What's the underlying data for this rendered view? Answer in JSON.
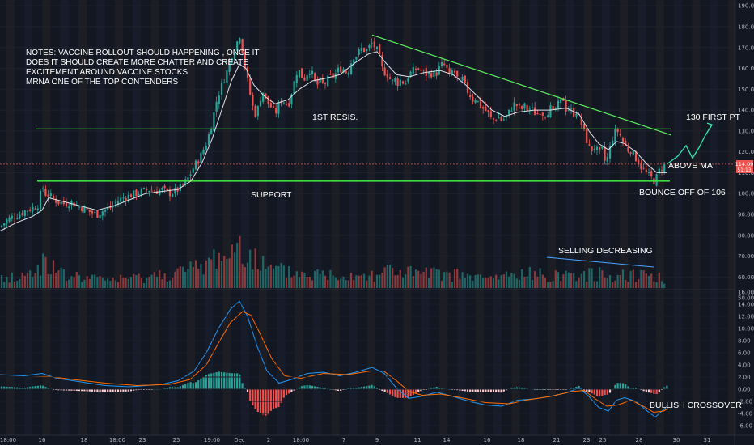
{
  "chart_data": {
    "type": "candlestick",
    "price_axis": {
      "ticks": [
        "190.00",
        "180.00",
        "170.00",
        "160.00",
        "150.00",
        "140.00",
        "130.00",
        "120.00",
        "110.00",
        "100.00",
        "90.00",
        "80.00",
        "70.00",
        "60.00",
        "50.00"
      ],
      "last_price_label": "114.09",
      "timer_label": "51:13",
      "last_price_color": "#ef5350"
    },
    "macd_axis": {
      "ticks": [
        "16.00",
        "14.00",
        "12.00",
        "10.00",
        "8.00",
        "6.00",
        "4.00",
        "2.00",
        "0.00",
        "-2.00",
        "-4.00",
        "-6.00"
      ]
    },
    "time_axis": {
      "labels": [
        "18:00",
        "16",
        "18",
        "18:00",
        "23",
        "25",
        "19:00",
        "Dec",
        "2",
        "18:00",
        "7",
        "9",
        "11",
        "14",
        "16",
        "18",
        "21",
        "23",
        "25",
        "28",
        "30",
        "31"
      ]
    },
    "annotations": {
      "notes_lines": [
        "NOTES: VACCINE ROLLOUT SHOULD HAPPENING , ONCE IT",
        "DOES IT SHOULD CREATE MORE CHATTER AND CREATE",
        "EXCITEMENT AROUND VACCINE STOCKS",
        "MRNA ONE OF THE TOP CONTENDERS"
      ],
      "first_resistance": "1ST RESIS.",
      "support": "SUPPORT",
      "target": "130 FIRST PT",
      "above_ma": "ABOVE MA",
      "bounce": "BOUNCE OFF OF 106",
      "selling": "SELLING DECREASING",
      "crossover": "BULLISH CROSSOVER"
    },
    "levels": {
      "resistance": 131,
      "support": 106
    },
    "price_path": [
      [
        0,
        84
      ],
      [
        8,
        87
      ],
      [
        16,
        89
      ],
      [
        24,
        90
      ],
      [
        32,
        92
      ],
      [
        40,
        93
      ],
      [
        48,
        95
      ],
      [
        52,
        104
      ],
      [
        56,
        100
      ],
      [
        64,
        98
      ],
      [
        72,
        96
      ],
      [
        80,
        95
      ],
      [
        88,
        96
      ],
      [
        96,
        94
      ],
      [
        104,
        93
      ],
      [
        112,
        91
      ],
      [
        120,
        90
      ],
      [
        128,
        92
      ],
      [
        136,
        93
      ],
      [
        144,
        96
      ],
      [
        152,
        98
      ],
      [
        160,
        99
      ],
      [
        168,
        100
      ],
      [
        176,
        101
      ],
      [
        184,
        102
      ],
      [
        192,
        101
      ],
      [
        200,
        102
      ],
      [
        208,
        100
      ],
      [
        216,
        101
      ],
      [
        224,
        103
      ],
      [
        232,
        107
      ],
      [
        240,
        113
      ],
      [
        248,
        118
      ],
      [
        256,
        125
      ],
      [
        262,
        134
      ],
      [
        268,
        145
      ],
      [
        274,
        152
      ],
      [
        280,
        158
      ],
      [
        286,
        166
      ],
      [
        292,
        171
      ],
      [
        296,
        177
      ],
      [
        300,
        168
      ],
      [
        304,
        158
      ],
      [
        308,
        150
      ],
      [
        312,
        142
      ],
      [
        316,
        138
      ],
      [
        320,
        142
      ],
      [
        324,
        150
      ],
      [
        328,
        146
      ],
      [
        332,
        143
      ],
      [
        336,
        141
      ],
      [
        340,
        138
      ],
      [
        344,
        142
      ],
      [
        348,
        145
      ],
      [
        352,
        144
      ],
      [
        356,
        142
      ],
      [
        360,
        148
      ],
      [
        364,
        154
      ],
      [
        368,
        160
      ],
      [
        372,
        157
      ],
      [
        376,
        155
      ],
      [
        380,
        158
      ],
      [
        384,
        160
      ],
      [
        388,
        154
      ],
      [
        392,
        152
      ],
      [
        396,
        154
      ],
      [
        400,
        152
      ],
      [
        404,
        154
      ],
      [
        408,
        156
      ],
      [
        412,
        156
      ],
      [
        416,
        158
      ],
      [
        420,
        160
      ],
      [
        424,
        160
      ],
      [
        428,
        158
      ],
      [
        432,
        160
      ],
      [
        436,
        166
      ],
      [
        440,
        166
      ],
      [
        444,
        168
      ],
      [
        448,
        170
      ],
      [
        452,
        168
      ],
      [
        456,
        170
      ],
      [
        460,
        172
      ],
      [
        464,
        170
      ],
      [
        468,
        167
      ],
      [
        472,
        160
      ],
      [
        476,
        158
      ],
      [
        480,
        157
      ],
      [
        484,
        153
      ],
      [
        488,
        155
      ],
      [
        492,
        153
      ],
      [
        496,
        155
      ],
      [
        500,
        152
      ],
      [
        504,
        156
      ],
      [
        508,
        158
      ],
      [
        512,
        159
      ],
      [
        516,
        160
      ],
      [
        520,
        159
      ],
      [
        524,
        158
      ],
      [
        528,
        157
      ],
      [
        532,
        158
      ],
      [
        536,
        157
      ],
      [
        540,
        158
      ],
      [
        544,
        161
      ],
      [
        548,
        162
      ],
      [
        552,
        160
      ],
      [
        556,
        155
      ],
      [
        560,
        160
      ],
      [
        564,
        156
      ],
      [
        568,
        153
      ],
      [
        572,
        155
      ],
      [
        576,
        150
      ],
      [
        580,
        148
      ],
      [
        584,
        145
      ],
      [
        588,
        146
      ],
      [
        592,
        143
      ],
      [
        596,
        141
      ],
      [
        600,
        140
      ],
      [
        604,
        138
      ],
      [
        608,
        135
      ],
      [
        612,
        136
      ],
      [
        616,
        137
      ],
      [
        620,
        135
      ],
      [
        624,
        136
      ],
      [
        628,
        138
      ],
      [
        632,
        141
      ],
      [
        636,
        143
      ],
      [
        640,
        142
      ],
      [
        644,
        140
      ],
      [
        648,
        142
      ],
      [
        652,
        140
      ],
      [
        656,
        141
      ],
      [
        660,
        139
      ],
      [
        664,
        138
      ],
      [
        668,
        140
      ],
      [
        672,
        138
      ],
      [
        676,
        139
      ],
      [
        680,
        141
      ],
      [
        684,
        138
      ],
      [
        688,
        142
      ],
      [
        692,
        143
      ],
      [
        696,
        146
      ],
      [
        700,
        140
      ],
      [
        704,
        141
      ],
      [
        708,
        138
      ],
      [
        712,
        140
      ],
      [
        716,
        136
      ],
      [
        720,
        132
      ],
      [
        724,
        127
      ],
      [
        728,
        122
      ],
      [
        732,
        121
      ],
      [
        736,
        123
      ],
      [
        740,
        118
      ],
      [
        744,
        122
      ],
      [
        748,
        115
      ],
      [
        752,
        118
      ],
      [
        756,
        126
      ],
      [
        760,
        129
      ],
      [
        764,
        130
      ],
      [
        768,
        127
      ],
      [
        772,
        123
      ],
      [
        776,
        121
      ],
      [
        780,
        121
      ],
      [
        784,
        118
      ],
      [
        788,
        116
      ],
      [
        792,
        113
      ],
      [
        796,
        111
      ],
      [
        800,
        109
      ],
      [
        804,
        108
      ],
      [
        808,
        106
      ],
      [
        812,
        108
      ],
      [
        816,
        112
      ],
      [
        820,
        113
      ],
      [
        824,
        114
      ]
    ],
    "projection": [
      [
        824,
        114
      ],
      [
        838,
        118
      ],
      [
        848,
        123
      ],
      [
        856,
        117
      ],
      [
        864,
        122
      ],
      [
        872,
        128
      ],
      [
        880,
        133
      ]
    ],
    "ma_path": [
      [
        0,
        82
      ],
      [
        20,
        86
      ],
      [
        40,
        89
      ],
      [
        52,
        92
      ],
      [
        60,
        98
      ],
      [
        80,
        96
      ],
      [
        100,
        94
      ],
      [
        120,
        92
      ],
      [
        140,
        94
      ],
      [
        160,
        97
      ],
      [
        180,
        100
      ],
      [
        200,
        101
      ],
      [
        220,
        102
      ],
      [
        236,
        106
      ],
      [
        250,
        115
      ],
      [
        262,
        126
      ],
      [
        274,
        140
      ],
      [
        286,
        154
      ],
      [
        296,
        162
      ],
      [
        304,
        160
      ],
      [
        314,
        152
      ],
      [
        326,
        147
      ],
      [
        340,
        143
      ],
      [
        356,
        145
      ],
      [
        370,
        150
      ],
      [
        386,
        154
      ],
      [
        400,
        155
      ],
      [
        420,
        157
      ],
      [
        440,
        163
      ],
      [
        456,
        167
      ],
      [
        466,
        168
      ],
      [
        476,
        163
      ],
      [
        490,
        157
      ],
      [
        506,
        156
      ],
      [
        524,
        158
      ],
      [
        544,
        159
      ],
      [
        560,
        157
      ],
      [
        576,
        152
      ],
      [
        592,
        146
      ],
      [
        608,
        140
      ],
      [
        624,
        137
      ],
      [
        640,
        139
      ],
      [
        660,
        140
      ],
      [
        680,
        140
      ],
      [
        700,
        141
      ],
      [
        716,
        138
      ],
      [
        728,
        130
      ],
      [
        740,
        124
      ],
      [
        752,
        121
      ],
      [
        762,
        125
      ],
      [
        772,
        124
      ],
      [
        786,
        120
      ],
      [
        800,
        114
      ],
      [
        812,
        110
      ],
      [
        824,
        110
      ]
    ],
    "trendline": [
      [
        460,
        176
      ],
      [
        830,
        128
      ]
    ],
    "selling_line": [
      [
        676,
        71
      ],
      [
        808,
        66
      ]
    ],
    "macd_line": [
      [
        0,
        2.4
      ],
      [
        30,
        2.2
      ],
      [
        52,
        2.6
      ],
      [
        70,
        1.8
      ],
      [
        100,
        1.2
      ],
      [
        130,
        0.6
      ],
      [
        160,
        0.4
      ],
      [
        200,
        0.8
      ],
      [
        220,
        1.4
      ],
      [
        240,
        3
      ],
      [
        255,
        6
      ],
      [
        270,
        10
      ],
      [
        285,
        13.2
      ],
      [
        296,
        14.5
      ],
      [
        306,
        12
      ],
      [
        318,
        7
      ],
      [
        330,
        3
      ],
      [
        345,
        1
      ],
      [
        360,
        1.6
      ],
      [
        380,
        2.6
      ],
      [
        400,
        2.8
      ],
      [
        420,
        2.2
      ],
      [
        440,
        2.8
      ],
      [
        460,
        3.6
      ],
      [
        475,
        2.6
      ],
      [
        490,
        0.2
      ],
      [
        505,
        -1.5
      ],
      [
        520,
        -1.2
      ],
      [
        540,
        -0.5
      ],
      [
        560,
        -1.2
      ],
      [
        580,
        -2
      ],
      [
        600,
        -2.6
      ],
      [
        620,
        -2.8
      ],
      [
        640,
        -1.8
      ],
      [
        660,
        -1.6
      ],
      [
        680,
        -1.2
      ],
      [
        700,
        -0.6
      ],
      [
        716,
        0.2
      ],
      [
        728,
        -1.2
      ],
      [
        740,
        -3
      ],
      [
        752,
        -3.6
      ],
      [
        762,
        -1.8
      ],
      [
        772,
        -1.4
      ],
      [
        786,
        -2
      ],
      [
        800,
        -3.6
      ],
      [
        810,
        -4.6
      ],
      [
        820,
        -3.4
      ],
      [
        826,
        -2.6
      ]
    ],
    "signal_line": [
      [
        0,
        2
      ],
      [
        40,
        2
      ],
      [
        60,
        2.1
      ],
      [
        90,
        1.6
      ],
      [
        130,
        1
      ],
      [
        170,
        0.6
      ],
      [
        210,
        0.8
      ],
      [
        235,
        1.6
      ],
      [
        255,
        4
      ],
      [
        270,
        7.6
      ],
      [
        285,
        11
      ],
      [
        300,
        12.8
      ],
      [
        310,
        12.2
      ],
      [
        322,
        9
      ],
      [
        336,
        5
      ],
      [
        352,
        2.2
      ],
      [
        372,
        1.8
      ],
      [
        400,
        2.6
      ],
      [
        430,
        2.4
      ],
      [
        458,
        3
      ],
      [
        474,
        3
      ],
      [
        490,
        1.4
      ],
      [
        506,
        -0.4
      ],
      [
        522,
        -1
      ],
      [
        545,
        -0.8
      ],
      [
        570,
        -1.4
      ],
      [
        600,
        -2.2
      ],
      [
        630,
        -2.4
      ],
      [
        650,
        -1.8
      ],
      [
        680,
        -1.2
      ],
      [
        706,
        -0.4
      ],
      [
        722,
        -0.2
      ],
      [
        736,
        -1.6
      ],
      [
        750,
        -2.8
      ],
      [
        764,
        -2.6
      ],
      [
        780,
        -1.8
      ],
      [
        795,
        -2.8
      ],
      [
        808,
        -3.8
      ],
      [
        820,
        -3.6
      ],
      [
        826,
        -3.2
      ]
    ],
    "volume_profile": [
      [
        0,
        2
      ],
      [
        40,
        3
      ],
      [
        58,
        7
      ],
      [
        70,
        3
      ],
      [
        120,
        2
      ],
      [
        160,
        2
      ],
      [
        200,
        3
      ],
      [
        240,
        4
      ],
      [
        262,
        6
      ],
      [
        274,
        8
      ],
      [
        286,
        7
      ],
      [
        298,
        11
      ],
      [
        304,
        10
      ],
      [
        312,
        7
      ],
      [
        330,
        4
      ],
      [
        380,
        3
      ],
      [
        420,
        3
      ],
      [
        460,
        3
      ],
      [
        480,
        4
      ],
      [
        520,
        3
      ],
      [
        560,
        3
      ],
      [
        600,
        2
      ],
      [
        640,
        3
      ],
      [
        680,
        3
      ],
      [
        720,
        3
      ],
      [
        760,
        3
      ],
      [
        800,
        3
      ],
      [
        822,
        2
      ]
    ],
    "y_range": [
      48,
      193
    ],
    "macd_range": [
      -6.6,
      16.6
    ]
  }
}
